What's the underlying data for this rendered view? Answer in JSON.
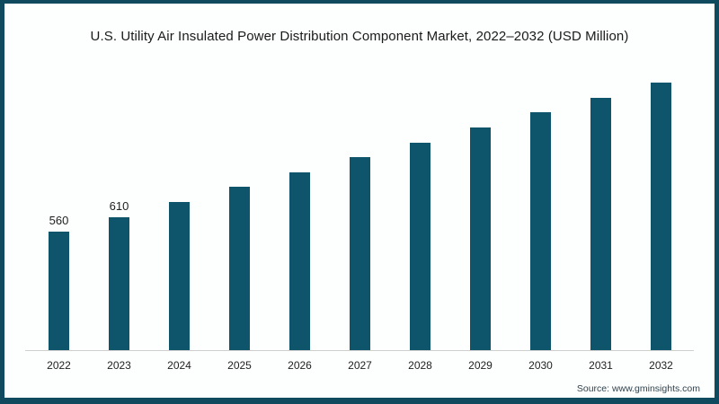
{
  "title": "U.S. Utility Air Insulated Power Distribution Component Market, 2022–2032 (USD Million)",
  "source": "Source: www.gminsights.com",
  "colors": {
    "bar": "#0e546b",
    "frame_border": "#104a5e",
    "axis_line": "#cfcfcf",
    "title_text": "#1a1a1a",
    "source_text": "#2f4450"
  },
  "chart_data": {
    "type": "bar",
    "title": "U.S. Utility Air Insulated Power Distribution Component Market, 2022–2032 (USD Million)",
    "categories": [
      "2022",
      "2023",
      "2024",
      "2025",
      "2026",
      "2027",
      "2028",
      "2029",
      "2030",
      "2031",
      "2032"
    ],
    "values": [
      560,
      610,
      660,
      710,
      760,
      810,
      860,
      910,
      960,
      1010,
      1060
    ],
    "data_labels": [
      "560",
      "610",
      "",
      "",
      "",
      "",
      "",
      "",
      "",
      "",
      ""
    ],
    "xlabel": "",
    "ylabel": "USD Million",
    "ylim": [
      160,
      1100
    ],
    "grid": false,
    "legend": false,
    "axis_ticks_shown": false
  }
}
